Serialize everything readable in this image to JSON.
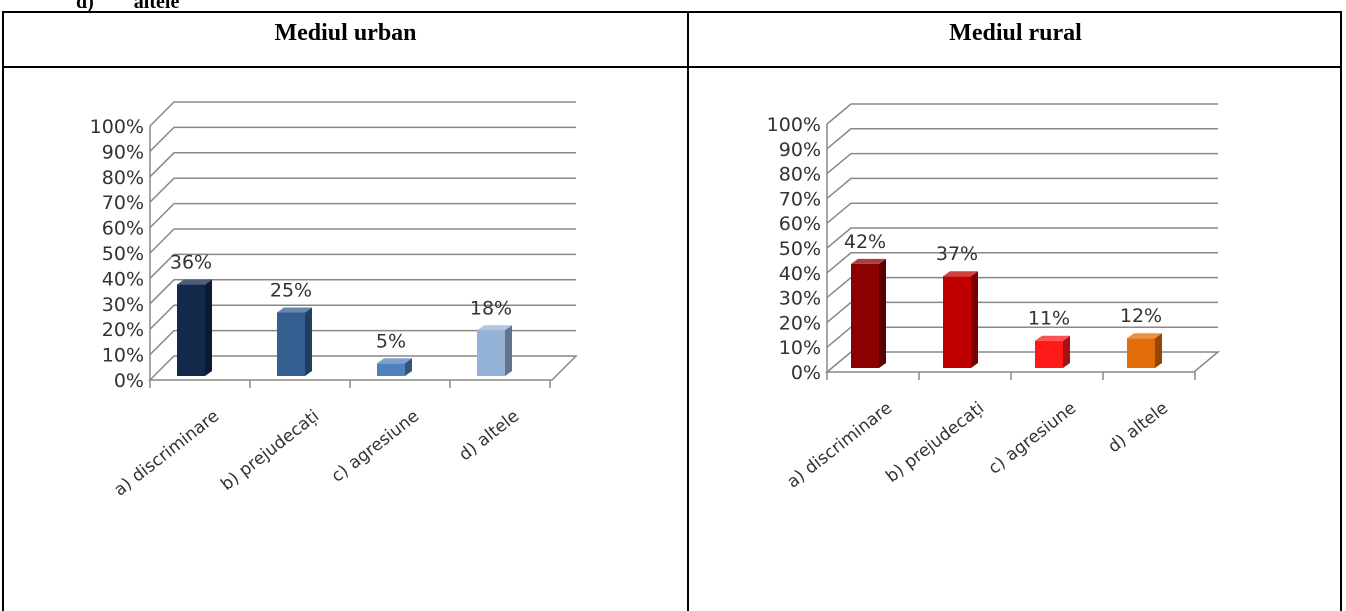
{
  "header": {
    "cut_label": "d)",
    "cut_text": "altele",
    "col_urban": "Mediul urban",
    "col_rural": "Mediul rural"
  },
  "chart_data": [
    {
      "type": "bar",
      "title": "",
      "categories": [
        "a) discriminare",
        "b) prejudecați",
        "c) agresiune",
        "d) altele"
      ],
      "values": [
        36,
        25,
        5,
        18
      ],
      "value_labels": [
        "36%",
        "25%",
        "5%",
        "18%"
      ],
      "yticks": [
        "0%",
        "10%",
        "20%",
        "30%",
        "40%",
        "50%",
        "60%",
        "70%",
        "80%",
        "90%",
        "100%"
      ],
      "ylim": [
        0,
        100
      ],
      "grid": true,
      "legend": "none",
      "colors": [
        "#13294b",
        "#365f91",
        "#4f81bd",
        "#95b3d7"
      ]
    },
    {
      "type": "bar",
      "title": "",
      "categories": [
        "a) discriminare",
        "b) prejudecați",
        "c) agresiune",
        "d) altele"
      ],
      "values": [
        42,
        37,
        11,
        12
      ],
      "value_labels": [
        "42%",
        "37%",
        "11%",
        "12%"
      ],
      "yticks": [
        "0%",
        "10%",
        "20%",
        "30%",
        "40%",
        "50%",
        "60%",
        "70%",
        "80%",
        "90%",
        "100%"
      ],
      "ylim": [
        0,
        100
      ],
      "grid": true,
      "legend": "none",
      "colors": [
        "#8b0000",
        "#c00000",
        "#ff1a1a",
        "#e36c0a"
      ]
    }
  ]
}
